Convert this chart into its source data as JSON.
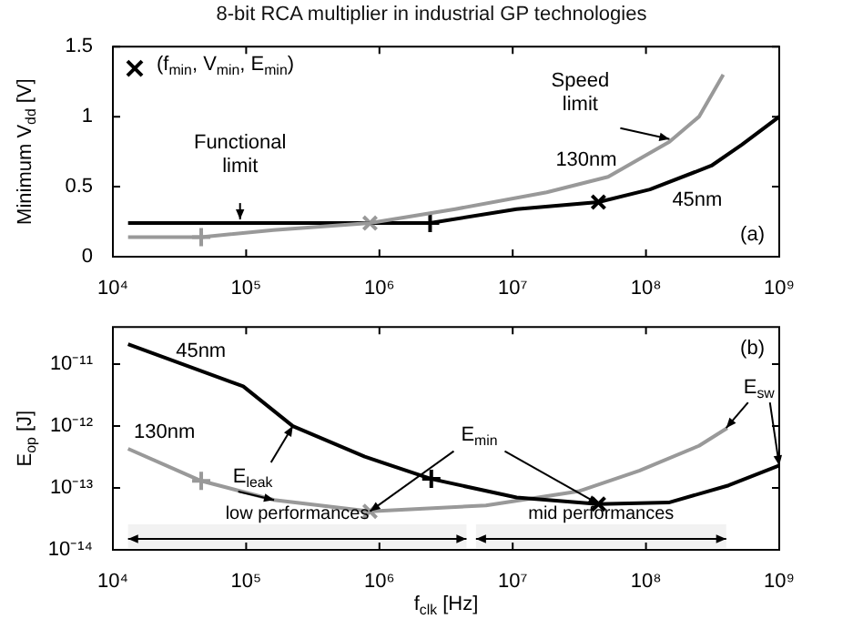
{
  "chart_data": [
    {
      "type": "line",
      "title": "8-bit RCA multiplier in industrial GP technologies",
      "ylabel": "Minimum V$_{dd}$ [V]",
      "log": "x",
      "legend": "top left",
      "xlim": [
        10000,
        1000000000
      ],
      "xticks": [
        {
          "value": 10000,
          "label": "10⁴"
        },
        {
          "value": 100000,
          "label": "10⁵"
        },
        {
          "value": 1000000,
          "label": "10⁶"
        },
        {
          "value": 10000000,
          "label": "10⁷"
        },
        {
          "value": 100000000,
          "label": "10⁸"
        },
        {
          "value": 1000000000,
          "label": "10⁹"
        }
      ],
      "ylim": [
        0,
        1.5
      ],
      "yticks": [
        0,
        0.5,
        1,
        1.5
      ],
      "series": [
        {
          "name": "130nm",
          "color": "#999999",
          "x": [
            13000,
            46000,
            160000,
            850000,
            3700000,
            18000000,
            52000000,
            150000000,
            250000000,
            380000000
          ],
          "values": [
            0.14,
            0.14,
            0.19,
            0.24,
            0.34,
            0.46,
            0.57,
            0.82,
            1.0,
            1.3
          ]
        },
        {
          "name": "45nm",
          "color": "#000000",
          "x": [
            13000,
            2400000,
            10700000,
            44000000,
            107000000,
            310000000,
            525000000,
            1000000000
          ],
          "values": [
            0.24,
            0.24,
            0.34,
            0.39,
            0.48,
            0.65,
            0.8,
            1.0
          ]
        },
        {
          "name": "(f$_{min}$, V$_{min}$, E$_{min}$)",
          "type": "scatter",
          "marker": "cross",
          "colors": [
            "#999999",
            "#000000"
          ],
          "x": [
            850000,
            44000000
          ],
          "values": [
            0.24,
            0.39
          ]
        },
        {
          "type": "scatter",
          "marker": "cross",
          "colors": [
            "#999999",
            "#000000"
          ],
          "x": [
            46000,
            2400000
          ],
          "values": [
            0.14,
            0.24
          ]
        }
      ],
      "annotations": [
        {
          "text": "Functional limit",
          "x": 90000,
          "y": 0.24
        },
        {
          "text": "Speed limit",
          "x": 150000000,
          "y": 0.84
        },
        "(a)"
      ]
    },
    {
      "type": "line",
      "xlabel": "f$_{clk}$ [Hz]",
      "ylabel": "E$_{op}$ [J]",
      "log": "xy",
      "xlim": [
        10000,
        1000000000
      ],
      "xticks": [
        {
          "value": 10000,
          "label": "10⁴"
        },
        {
          "value": 100000,
          "label": "10⁵"
        },
        {
          "value": 1000000,
          "label": "10⁶"
        },
        {
          "value": 10000000,
          "label": "10⁷"
        },
        {
          "value": 100000000,
          "label": "10⁸"
        },
        {
          "value": 1000000000,
          "label": "10⁹"
        }
      ],
      "ylim": [
        1e-14,
        4e-11
      ],
      "yticks": [
        {
          "value": 1e-14,
          "label": "10⁻¹⁴"
        },
        {
          "value": 1e-13,
          "label": "10⁻¹³"
        },
        {
          "value": 1e-12,
          "label": "10⁻¹²"
        },
        {
          "value": 1e-11,
          "label": "10⁻¹¹"
        }
      ],
      "series": [
        {
          "name": "45nm",
          "color": "#000000",
          "x": [
            13000,
            95000,
            224000,
            776000,
            2450000,
            10700000,
            44000000,
            148000000,
            417000000,
            1000000000
          ],
          "values": [
            2.1e-11,
            4.4e-12,
            1e-12,
            3.2e-13,
            1.4e-13,
            7e-14,
            5.5e-14,
            5.8e-14,
            1.1e-13,
            2.3e-13
          ]
        },
        {
          "name": "130nm",
          "color": "#999999",
          "x": [
            13000,
            46000,
            162000,
            850000,
            6300000,
            31000000,
            89000000,
            250000000,
            407000000
          ],
          "values": [
            4.3e-13,
            1.3e-13,
            6.4e-14,
            4.2e-14,
            5.2e-14,
            8.8e-14,
            1.9e-13,
            4.8e-13,
            9.3e-13
          ]
        },
        {
          "type": "scatter",
          "marker": "cross",
          "colors": [
            "#999999",
            "#000000"
          ],
          "x": [
            850000,
            44000000
          ],
          "values": [
            4.2e-14,
            5.5e-14
          ]
        },
        {
          "type": "scatter",
          "marker": "cross",
          "colors": [
            "#999999",
            "#000000"
          ],
          "x": [
            46000,
            2450000
          ],
          "values": [
            1.3e-13,
            1.4e-13
          ]
        }
      ],
      "bands": [
        {
          "axis": "x",
          "from": 13000,
          "to": 4500000,
          "label": "low performances",
          "color": "#f2f2f2"
        },
        {
          "axis": "x",
          "from": 5300000,
          "to": 400000000,
          "label": "mid performances",
          "color": "#f2f2f2"
        }
      ],
      "annotations": [
        {
          "text": "E$_{leak}$",
          "x": 224000,
          "y": 1e-12
        },
        {
          "text": "E$_{min}$",
          "x": 850000,
          "y": 4.2e-14
        },
        {
          "text": "E$_{sw}$",
          "x": 400000000,
          "y": 9.3e-13
        },
        "(b)"
      ]
    }
  ]
}
